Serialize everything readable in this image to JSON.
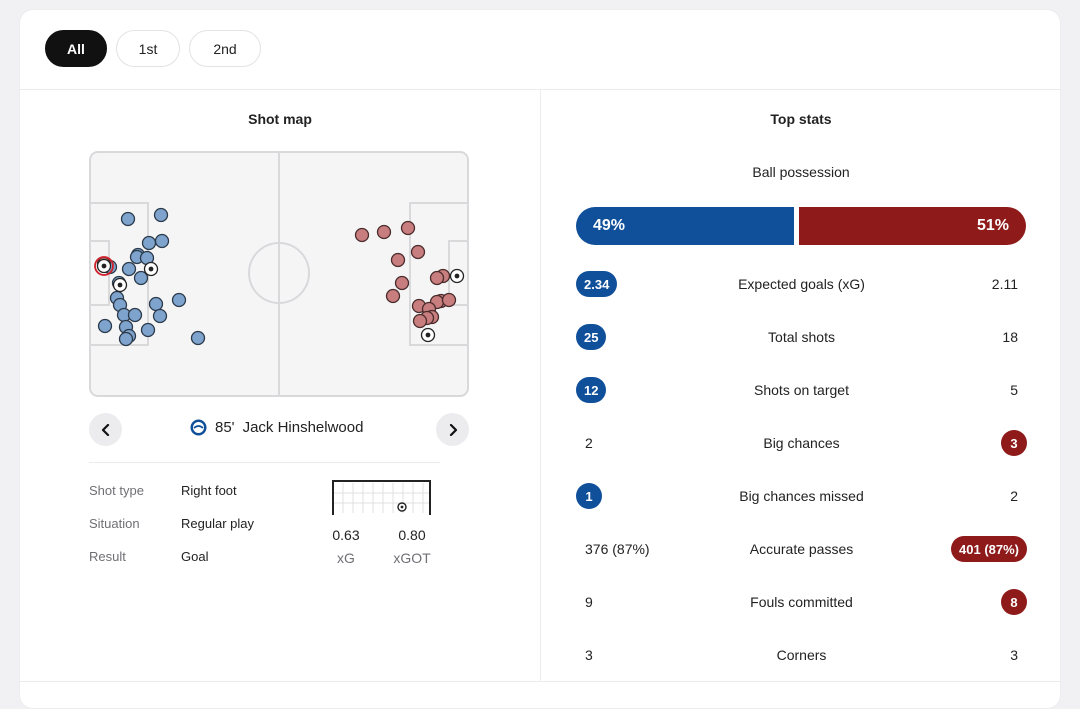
{
  "tabs": [
    {
      "label": "All",
      "active": true
    },
    {
      "label": "1st",
      "active": false
    },
    {
      "label": "2nd",
      "active": false
    }
  ],
  "shot_map": {
    "title": "Shot map",
    "selected_shot": {
      "minute": "85'",
      "player": "Jack Hinshelwood",
      "details": [
        {
          "label": "Shot type",
          "value": "Right foot"
        },
        {
          "label": "Situation",
          "value": "Regular play"
        },
        {
          "label": "Result",
          "value": "Goal"
        }
      ],
      "xg": {
        "value": "0.63",
        "label": "xG"
      },
      "xgot": {
        "value": "0.80",
        "label": "xGOT"
      }
    }
  },
  "top_stats": {
    "title": "Top stats",
    "possession": {
      "label": "Ball possession",
      "home": "49%",
      "away": "51%"
    },
    "rows": [
      {
        "name": "Expected goals (xG)",
        "home": "2.34",
        "away": "2.11",
        "highlight": "home"
      },
      {
        "name": "Total shots",
        "home": "25",
        "away": "18",
        "highlight": "home"
      },
      {
        "name": "Shots on target",
        "home": "12",
        "away": "5",
        "highlight": "home"
      },
      {
        "name": "Big chances",
        "home": "2",
        "away": "3",
        "highlight": "away"
      },
      {
        "name": "Big chances missed",
        "home": "1",
        "away": "2",
        "highlight": "home"
      },
      {
        "name": "Accurate passes",
        "home": "376 (87%)",
        "away": "401 (87%)",
        "highlight": "away"
      },
      {
        "name": "Fouls committed",
        "home": "9",
        "away": "8",
        "highlight": "away"
      },
      {
        "name": "Corners",
        "home": "3",
        "away": "3",
        "highlight": "none"
      }
    ]
  },
  "colors": {
    "home": "#10509a",
    "away": "#8e1a1a",
    "home_marker": "#7ea3cc",
    "away_marker": "#c87e7e"
  }
}
